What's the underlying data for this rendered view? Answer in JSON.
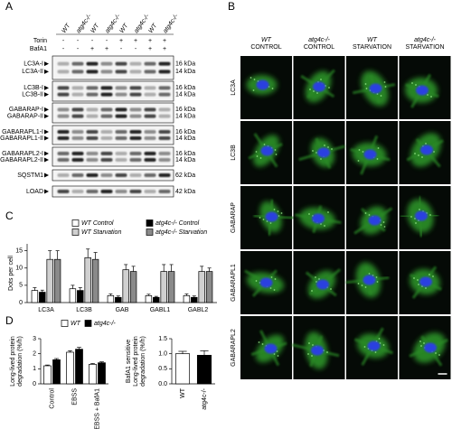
{
  "panels": [
    "A",
    "B",
    "C",
    "D"
  ],
  "blot": {
    "lanes": [
      "WT",
      "atg4c-/-",
      "WT",
      "atg4c-/-",
      "WT",
      "atg4c-/-",
      "WT",
      "atg4c-/-"
    ],
    "treatments": [
      {
        "name": "Torin",
        "values": [
          "-",
          "-",
          "-",
          "-",
          "+",
          "+",
          "+",
          "+"
        ]
      },
      {
        "name": "BafA1",
        "values": [
          "-",
          "-",
          "+",
          "+",
          "-",
          "-",
          "+",
          "+"
        ]
      }
    ],
    "rows": [
      {
        "labels": [
          "LC3A-I",
          "LC3A-II"
        ],
        "kda": [
          "16 kDa",
          "14 kDa"
        ]
      },
      {
        "labels": [
          "LC3B-I",
          "LC3B-II"
        ],
        "kda": [
          "16 kDa",
          "14 kDa"
        ]
      },
      {
        "labels": [
          "GABARAP-I",
          "GABARAP-II"
        ],
        "kda": [
          "16 kDa",
          "14 kDa"
        ]
      },
      {
        "labels": [
          "GABARAPL1-I",
          "GABARAPL1-II"
        ],
        "kda": [
          "16 kDa",
          "14 kDa"
        ]
      },
      {
        "labels": [
          "GABARAPL2-I",
          "GABARAPL2-II"
        ],
        "kda": [
          "16 kDa",
          "14 kDa"
        ]
      },
      {
        "labels": [
          "SQSTM1"
        ],
        "kda": [
          "62 kDa"
        ]
      },
      {
        "labels": [
          "LOAD"
        ],
        "kda": [
          "42 kDa"
        ]
      }
    ]
  },
  "microscopy": {
    "columns": [
      [
        "WT",
        "CONTROL"
      ],
      [
        "atg4c-/-",
        "CONTROL"
      ],
      [
        "WT",
        "STARVATION"
      ],
      [
        "atg4c-/-",
        "STARVATION"
      ]
    ],
    "rows": [
      "LC3A",
      "LC3B",
      "GABARAP",
      "GABARAPL1",
      "GABARAPL2"
    ]
  },
  "chart_data": [
    {
      "type": "bar",
      "ylabel": [
        "Dots per cell"
      ],
      "categories": [
        "LC3A",
        "LC3B",
        "GAB",
        "GABL1",
        "GABL2"
      ],
      "series": [
        {
          "name": "WT Control",
          "color": "#ffffff",
          "values": [
            3.5,
            4,
            2,
            2,
            2
          ],
          "errors": [
            0.8,
            1,
            0.5,
            0.4,
            0.5
          ]
        },
        {
          "name": "atg4c-/- Control",
          "color": "#000000",
          "values": [
            3,
            3.5,
            1.5,
            1.5,
            1.5
          ],
          "errors": [
            0.6,
            0.8,
            0.4,
            0.3,
            0.4
          ]
        },
        {
          "name": "WT Starvation",
          "color": "#d0d0d0",
          "values": [
            12.5,
            13,
            9.5,
            9,
            9
          ],
          "errors": [
            2.5,
            2.5,
            1.5,
            2,
            1.5
          ]
        },
        {
          "name": "atg4c-/- Starvation",
          "color": "#8a8a8a",
          "values": [
            12.5,
            12.5,
            9,
            9,
            9
          ],
          "errors": [
            2.5,
            2,
            1.5,
            2,
            1
          ]
        }
      ],
      "ylim": [
        0,
        17
      ],
      "yticks": [
        0,
        5,
        10,
        15
      ]
    },
    {
      "type": "bar",
      "ylabel": [
        "Long-lived protein",
        "degradation (%/h)"
      ],
      "categories": [
        "Control",
        "EBSS",
        "EBSS + BafA1"
      ],
      "series": [
        {
          "name": "WT",
          "color": "#ffffff",
          "values": [
            1.2,
            2.1,
            1.3
          ],
          "errors": [
            0.05,
            0.1,
            0.05
          ]
        },
        {
          "name": "atg4c-/-",
          "color": "#000000",
          "values": [
            1.6,
            2.3,
            1.4
          ],
          "errors": [
            0.08,
            0.12,
            0.06
          ]
        }
      ],
      "ylim": [
        0,
        3
      ],
      "yticks": [
        0,
        1,
        2,
        3
      ]
    },
    {
      "type": "bar",
      "ylabel": [
        "BafA1 sensitive",
        "Long-lived protein",
        "degradation (%/h)"
      ],
      "categories": [
        "WT",
        "atg4c-/-"
      ],
      "series": [
        {
          "color": "#ffffff",
          "values": [
            1.0,
            0.95
          ],
          "errors": [
            0.08,
            0.15
          ]
        }
      ],
      "colors": [
        "#ffffff",
        "#000000"
      ],
      "ylim": [
        0,
        1.5
      ],
      "yticks": [
        {
          "value": 0,
          "label": "0.0"
        },
        0.5,
        {
          "value": 1,
          "label": "1.0"
        },
        1.5
      ]
    }
  ]
}
